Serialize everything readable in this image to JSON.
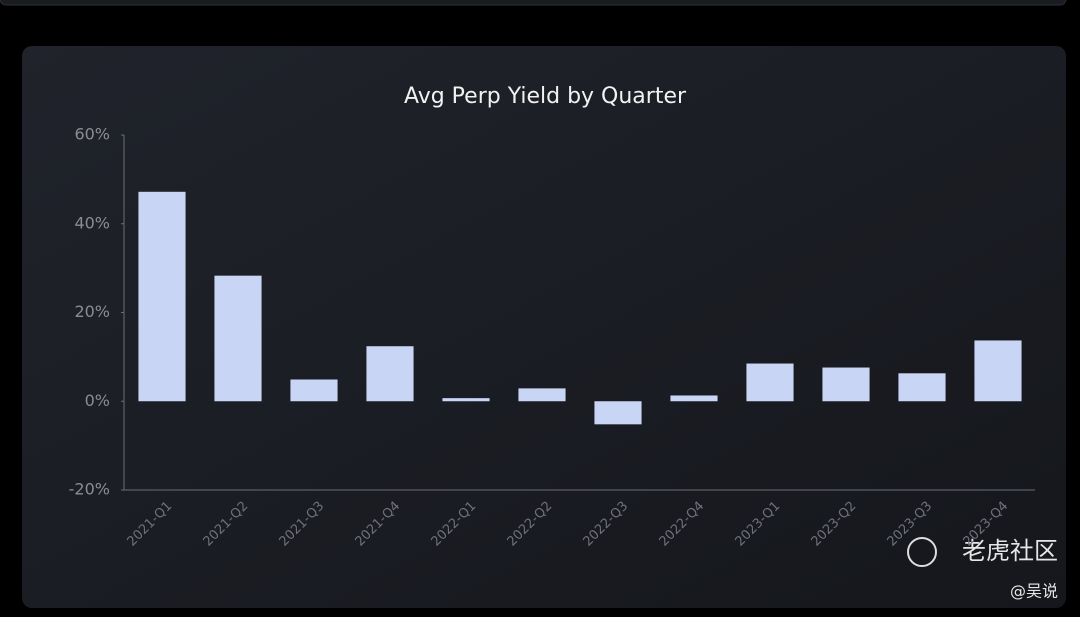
{
  "chart_data": {
    "type": "bar",
    "title": "Avg Perp Yield by Quarter",
    "categories": [
      "2021-Q1",
      "2021-Q2",
      "2021-Q3",
      "2021-Q4",
      "2022-Q1",
      "2022-Q2",
      "2022-Q3",
      "2022-Q4",
      "2023-Q1",
      "2023-Q2",
      "2023-Q3",
      "2023-Q4"
    ],
    "values": [
      47.2,
      28.3,
      4.9,
      12.4,
      0.7,
      2.9,
      -5.2,
      1.3,
      8.5,
      7.6,
      6.3,
      13.7
    ],
    "color": "#c9d5f5",
    "ylim": [
      -20,
      60
    ],
    "yticks": [
      {
        "value": -20,
        "label": "-20%"
      },
      {
        "value": 0,
        "label": "0%"
      },
      {
        "value": 20,
        "label": "20%"
      },
      {
        "value": 40,
        "label": "40%"
      },
      {
        "value": 60,
        "label": "60%"
      }
    ],
    "grid": false
  },
  "watermark": {
    "brand": "老虎社区",
    "author": "@吴说"
  }
}
